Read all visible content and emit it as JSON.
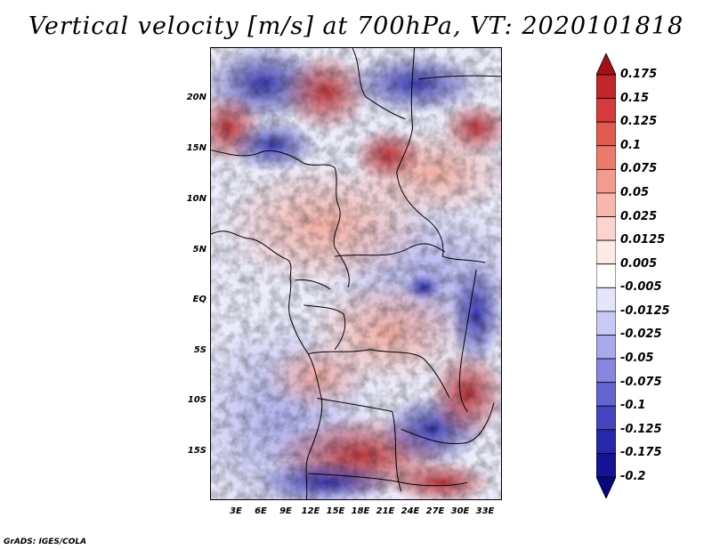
{
  "title": "Vertical velocity [m/s] at 700hPa, VT: 2020101818",
  "credit": "GrADS: IGES/COLA",
  "lat_labels": [
    "20N",
    "15N",
    "10N",
    "5N",
    "EQ",
    "5S",
    "10S",
    "15S"
  ],
  "lon_labels": [
    "3E",
    "6E",
    "9E",
    "12E",
    "15E",
    "18E",
    "21E",
    "24E",
    "27E",
    "30E",
    "33E"
  ],
  "colorbar": {
    "labels": [
      "0.175",
      "0.15",
      "0.125",
      "0.1",
      "0.075",
      "0.05",
      "0.025",
      "0.0125",
      "0.005",
      "-0.005",
      "-0.0125",
      "-0.025",
      "-0.05",
      "-0.075",
      "-0.1",
      "-0.125",
      "-0.175",
      "-0.2"
    ],
    "colors": [
      "#a50f15",
      "#c0262a",
      "#d53b3b",
      "#e35a50",
      "#ec7b6c",
      "#f39b8c",
      "#f7b9ad",
      "#fbd5cd",
      "#fdeae6",
      "#ffffff",
      "#e4e4fb",
      "#c9c9f5",
      "#a9a9ec",
      "#8787e0",
      "#6565d2",
      "#4545c0",
      "#2828aa",
      "#141494",
      "#08087a"
    ]
  },
  "map": {
    "region": "Central Africa",
    "lon_range": [
      "0E",
      "35E"
    ],
    "lat_range": [
      "19S",
      "24N"
    ]
  }
}
